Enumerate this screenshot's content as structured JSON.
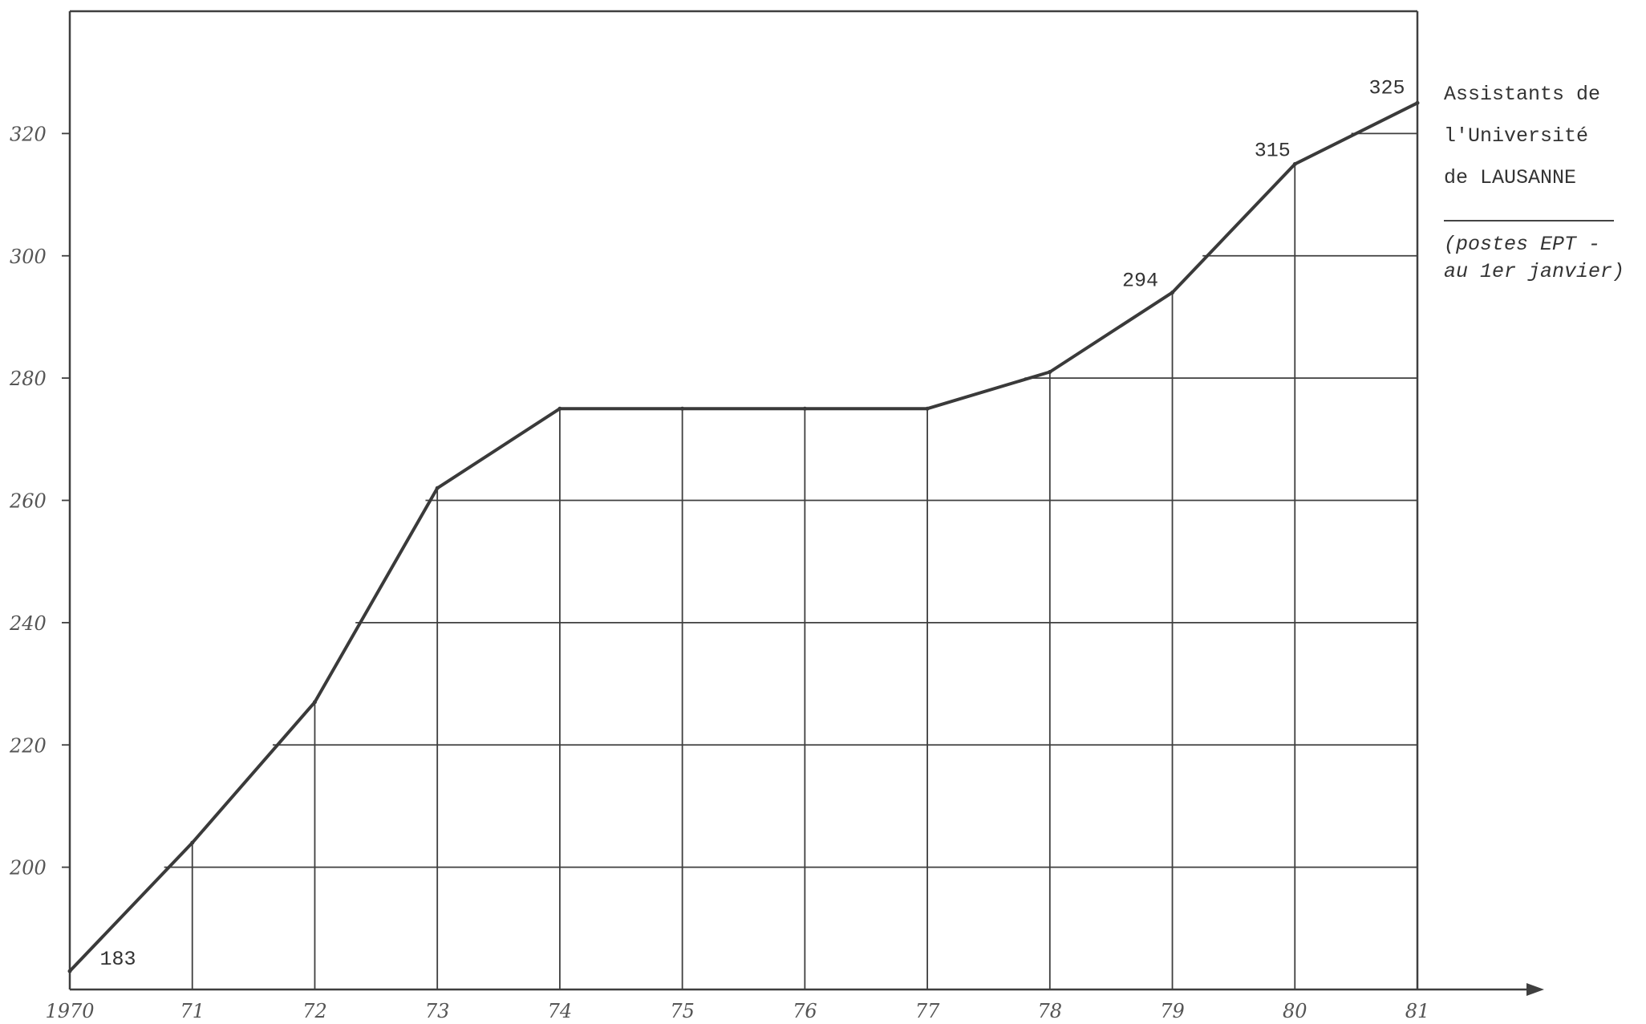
{
  "chart_data": {
    "type": "line",
    "title": "",
    "xlabel": "",
    "ylabel": "",
    "x_tick_labels": [
      "1970",
      "71",
      "72",
      "73",
      "74",
      "75",
      "76",
      "77",
      "78",
      "79",
      "80",
      "81"
    ],
    "y_ticks": [
      200,
      220,
      240,
      260,
      280,
      300,
      320
    ],
    "ylim": [
      180,
      340
    ],
    "grid": true,
    "series": [
      {
        "values": [
          183,
          204,
          227,
          262,
          275,
          275,
          275,
          275,
          281,
          294,
          315,
          325
        ]
      }
    ],
    "data_labels": [
      {
        "index": 0,
        "text": "183"
      },
      {
        "index": 9,
        "text": "294"
      },
      {
        "index": 10,
        "text": "315"
      },
      {
        "index": 11,
        "text": "325"
      }
    ],
    "legend_position": "right",
    "legend": {
      "line1": "Assistants de",
      "line2": "l'Université",
      "line3": "de LAUSANNE",
      "note1": "(postes EPT -",
      "note2": "au 1er janvier)"
    },
    "colors": {
      "line": "#3a3a3a",
      "grid": "#3f3f3f",
      "frame": "#3f3f3f"
    }
  }
}
